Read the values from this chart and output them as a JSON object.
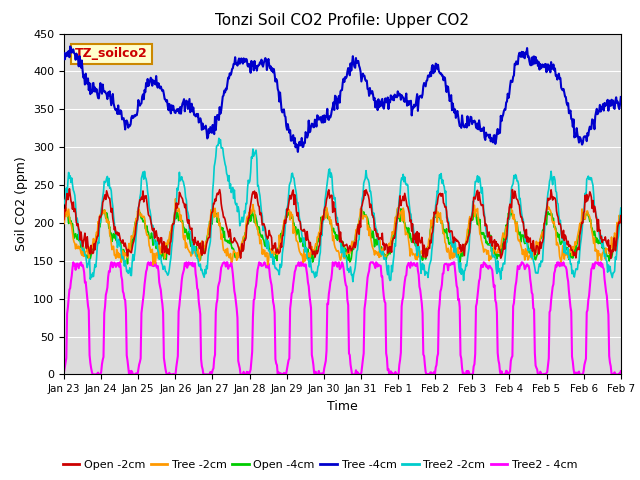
{
  "title": "Tonzi Soil CO2 Profile: Upper CO2",
  "xlabel": "Time",
  "ylabel": "Soil CO2 (ppm)",
  "ylim": [
    0,
    450
  ],
  "yticks": [
    0,
    50,
    100,
    150,
    200,
    250,
    300,
    350,
    400,
    450
  ],
  "xtick_labels": [
    "Jan 23",
    "Jan 24",
    "Jan 25",
    "Jan 26",
    "Jan 27",
    "Jan 28",
    "Jan 29",
    "Jan 30",
    "Jan 31",
    "Feb 1",
    "Feb 2",
    "Feb 3",
    "Feb 4",
    "Feb 5",
    "Feb 6",
    "Feb 7"
  ],
  "legend_entries": [
    "Open -2cm",
    "Tree -2cm",
    "Open -4cm",
    "Tree -4cm",
    "Tree2 -2cm",
    "Tree2 - 4cm"
  ],
  "legend_colors": [
    "#cc0000",
    "#ff9900",
    "#00cc00",
    "#0000cc",
    "#00cccc",
    "#ff00ff"
  ],
  "line_colors": {
    "open2": "#cc0000",
    "tree2": "#ff9900",
    "open4": "#00cc00",
    "tree4": "#0000cc",
    "tree2_2": "#00cccc",
    "tree2_4": "#ff00ff"
  },
  "annotation_text": "TZ_soilco2",
  "annotation_bg": "#ffffcc",
  "annotation_border": "#cc8800",
  "background_color": "#dcdcdc",
  "n_points": 720,
  "n_days": 15
}
